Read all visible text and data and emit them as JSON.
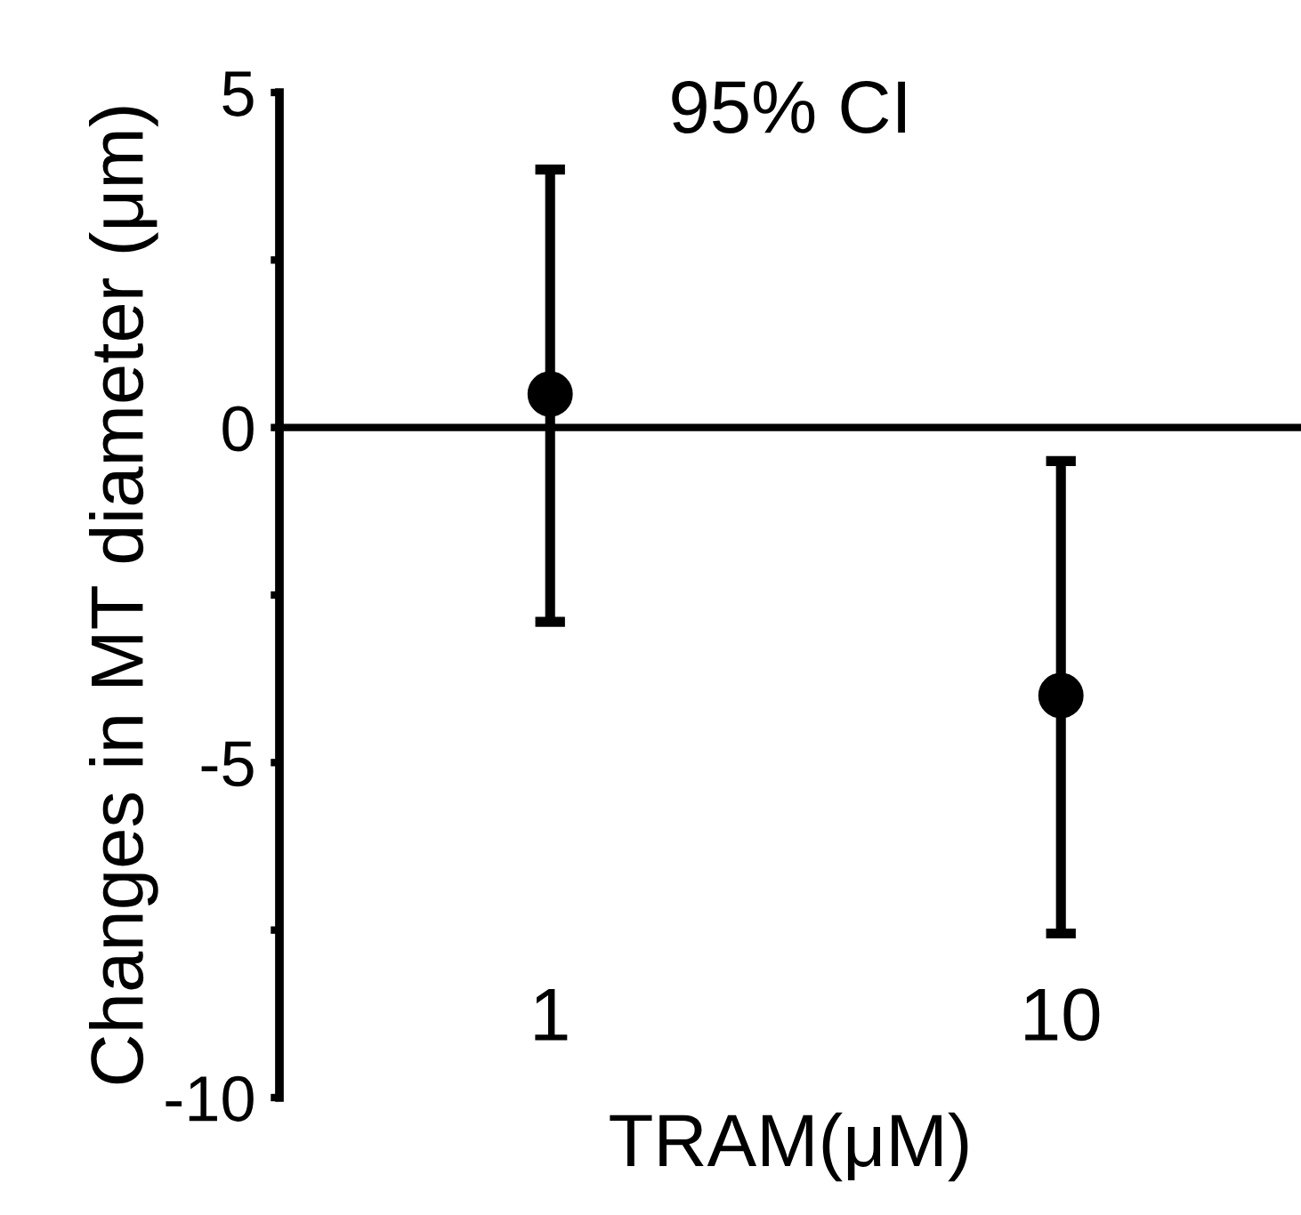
{
  "chart_data": {
    "type": "scatter",
    "title": "95% CI",
    "xlabel": "TRAM(μM)",
    "ylabel": "Changes in MT diameter (μm)",
    "categories": [
      "1",
      "10"
    ],
    "series": [
      {
        "color": "#000000",
        "values": [
          0.5,
          -4.0
        ],
        "errors": [
          [
            -2.9,
            3.85
          ],
          [
            -7.55,
            -0.5
          ]
        ]
      }
    ],
    "ylim": [
      -10,
      5
    ],
    "yticks": [
      -10,
      {
        "value": -7.5,
        "label": null
      },
      -5,
      {
        "value": -2.5,
        "label": null
      },
      0,
      {
        "value": 2.5,
        "label": null
      },
      5
    ],
    "ref_lines": [
      {
        "axis": "y",
        "value": 0,
        "color": "#000000"
      }
    ],
    "marker": "circle",
    "grid": false,
    "legend": false
  }
}
